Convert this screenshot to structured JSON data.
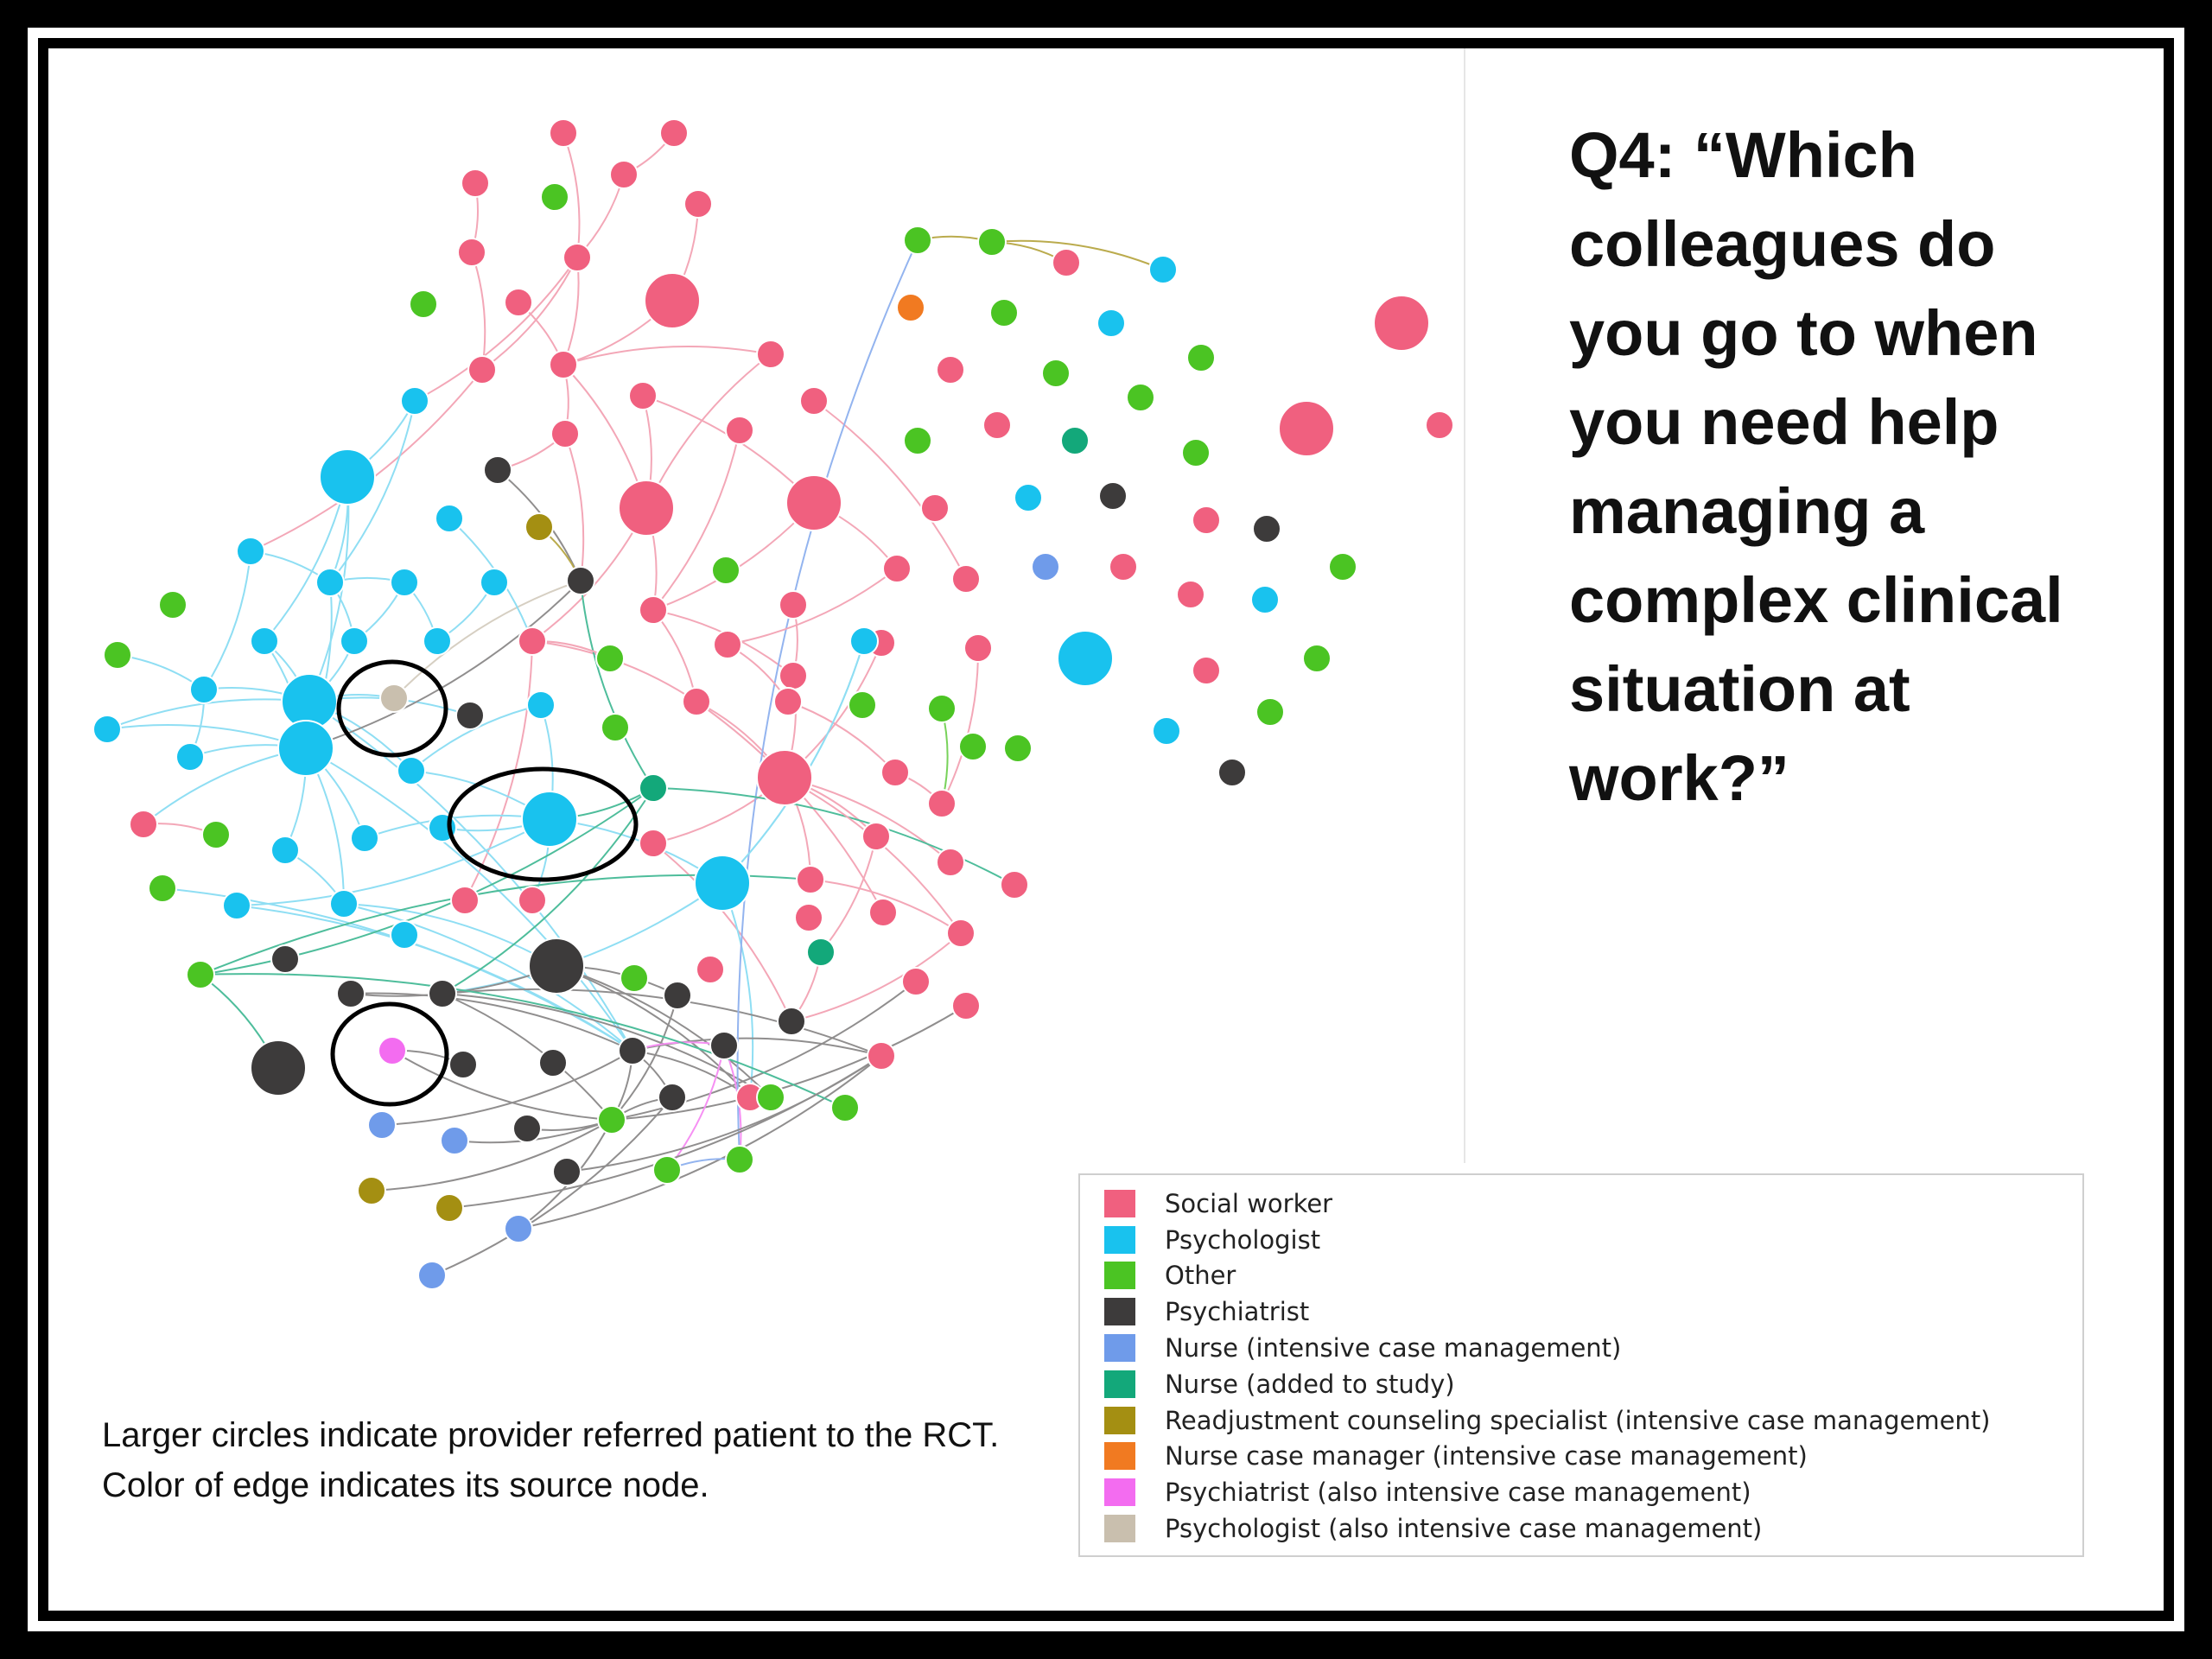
{
  "question": "Q4: “Which colleagues do you go to when you need help managing a complex clinical situation at work?”",
  "caption": "Larger circles indicate provider referred patient to the RCT. Color of edge indicates its source node.",
  "colors": {
    "social_worker": "#f0607f",
    "psychologist": "#19c2ee",
    "other": "#4bc423",
    "psychiatrist": "#3d3b3b",
    "nurse_icm": "#6f9bea",
    "nurse_added": "#13a87a",
    "readjustment": "#a48f12",
    "nurse_case_manager": "#f17a21",
    "psychiatrist_icm": "#f36cf0",
    "psychologist_icm": "#c9bfae"
  },
  "legend": [
    {
      "label": "Social worker",
      "color": "#f0607f"
    },
    {
      "label": "Psychologist",
      "color": "#19c2ee"
    },
    {
      "label": "Other",
      "color": "#4bc423"
    },
    {
      "label": "Psychiatrist",
      "color": "#3d3b3b"
    },
    {
      "label": "Nurse (intensive case management)",
      "color": "#6f9bea"
    },
    {
      "label": "Nurse (added to study)",
      "color": "#13a87a"
    },
    {
      "label": "Readjustment counseling specialist (intensive case management)",
      "color": "#a48f12"
    },
    {
      "label": "Nurse case manager (intensive case management)",
      "color": "#f17a21"
    },
    {
      "label": "Psychiatrist (also intensive case management)",
      "color": "#f36cf0"
    },
    {
      "label": "Psychologist (also intensive case management)",
      "color": "#c9bfae"
    }
  ]
}
